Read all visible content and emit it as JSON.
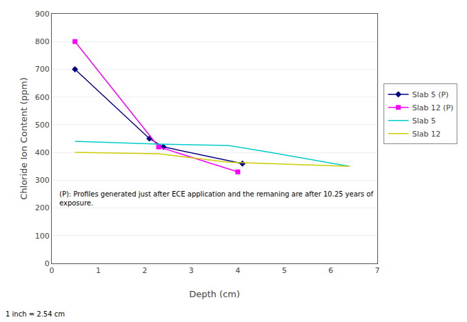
{
  "chart_data": {
    "type": "line",
    "xlabel": "Depth (cm)",
    "ylabel": "Chloride Ion Content (ppm)",
    "series": [
      {
        "name": "Slab 5 (P)",
        "color": "#000080",
        "marker": "diamond",
        "line_style": "solid",
        "x": [
          0.5,
          2.1,
          2.4,
          4.1
        ],
        "values": [
          700,
          450,
          420,
          360
        ]
      },
      {
        "name": "Slab 12 (P)",
        "color": "#ff00ff",
        "marker": "square",
        "line_style": "solid",
        "x": [
          0.5,
          2.3,
          4.0
        ],
        "values": [
          800,
          420,
          330
        ]
      },
      {
        "name": "Slab 5",
        "color": "#00cccc",
        "line_style": "solid",
        "x": [
          0.5,
          2.3,
          3.8,
          4.7,
          6.4
        ],
        "values": [
          440,
          430,
          425,
          400,
          350
        ]
      },
      {
        "name": "Slab 12",
        "color": "#cccc00",
        "line_style": "solid",
        "x": [
          0.5,
          2.3,
          3.8,
          6.4
        ],
        "values": [
          400,
          395,
          365,
          350
        ]
      }
    ],
    "xlim": [
      0,
      7
    ],
    "ylim": [
      0,
      900
    ],
    "xticks": [
      0,
      1,
      2,
      3,
      4,
      5,
      6,
      7
    ],
    "yticks": [
      0,
      100,
      200,
      300,
      400,
      500,
      600,
      700,
      800,
      900
    ],
    "grid": "y",
    "legend": "right",
    "annotations": [
      "(P): Profiles generated just after ECE application and the remaning are after 10.25 years of\nexposure.",
      "1 inch = 2.54 cm"
    ]
  }
}
